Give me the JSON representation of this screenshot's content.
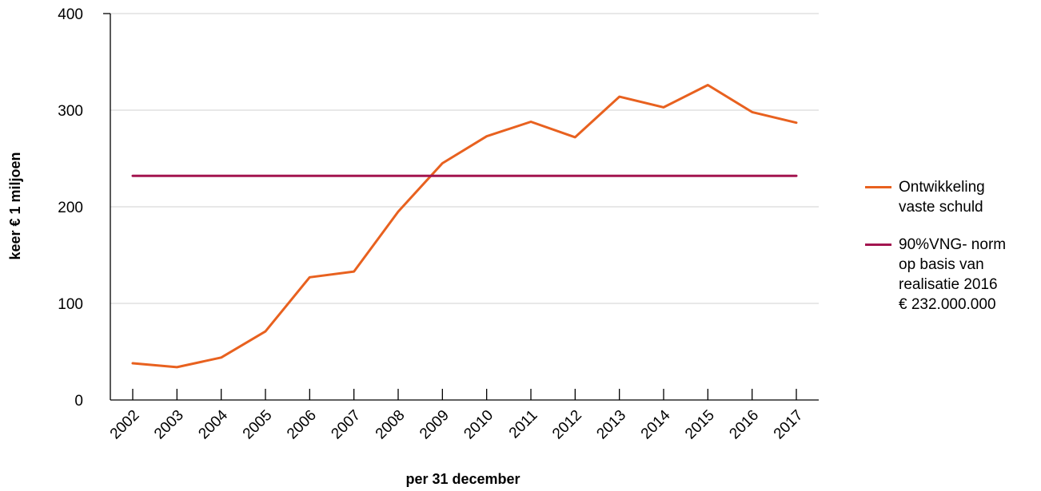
{
  "chart_data": {
    "type": "line",
    "title": "",
    "xlabel": "per 31 december",
    "ylabel": "keer € 1 miljoen",
    "categories": [
      "2002",
      "2003",
      "2004",
      "2005",
      "2006",
      "2007",
      "2008",
      "2009",
      "2010",
      "2011",
      "2012",
      "2013",
      "2014",
      "2015",
      "2016",
      "2017"
    ],
    "ylim": [
      0,
      400
    ],
    "yticks": [
      0,
      100,
      200,
      300,
      400
    ],
    "grid": true,
    "legend_position": "right",
    "series": [
      {
        "name": "Ontwikkeling\nvaste schuld",
        "color": "#E8611F",
        "values": [
          38,
          34,
          44,
          71,
          127,
          133,
          195,
          245,
          273,
          288,
          272,
          314,
          303,
          326,
          298,
          287
        ]
      },
      {
        "name": "90%VNG- norm\nop basis van\nrealisatie 2016\n€ 232.000.000",
        "color": "#A3154F",
        "values": [
          232,
          232,
          232,
          232,
          232,
          232,
          232,
          232,
          232,
          232,
          232,
          232,
          232,
          232,
          232,
          232
        ]
      }
    ]
  }
}
